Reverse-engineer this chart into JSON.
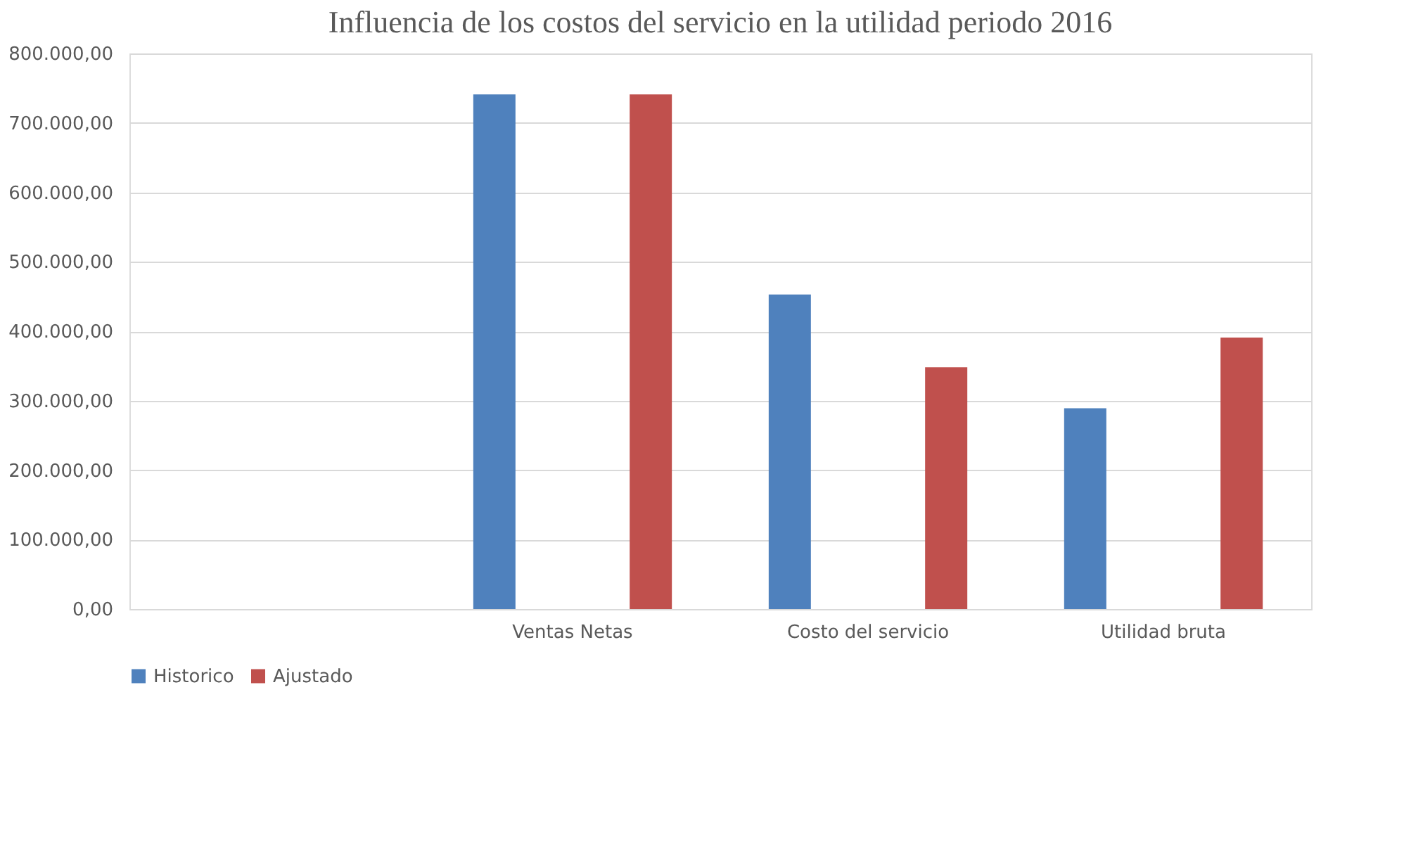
{
  "chart_data": {
    "type": "bar",
    "title": "Influencia de los costos del servicio en la utilidad periodo 2016",
    "categories": [
      null,
      "Ventas Netas",
      "Costo del servicio",
      "Utilidad bruta"
    ],
    "series": [
      {
        "name": "Historico",
        "color": "#4f81bd",
        "values": [
          null,
          741000,
          453000,
          289000
        ]
      },
      {
        "name": "Ajustado",
        "color": "#c0504d",
        "values": [
          null,
          741000,
          348000,
          391000
        ]
      }
    ],
    "ylim": [
      0,
      800000
    ],
    "yticks": [
      {
        "value": 0,
        "label": "0,00"
      },
      {
        "value": 100000,
        "label": "100.000,00"
      },
      {
        "value": 200000,
        "label": "200.000,00"
      },
      {
        "value": 300000,
        "label": "300.000,00"
      },
      {
        "value": 400000,
        "label": "400.000,00"
      },
      {
        "value": 500000,
        "label": "500.000,00"
      },
      {
        "value": 600000,
        "label": "600.000,00"
      },
      {
        "value": 700000,
        "label": "700.000,00"
      },
      {
        "value": 800000,
        "label": "800.000,00"
      }
    ],
    "grid": "y",
    "legend": "bottom"
  }
}
